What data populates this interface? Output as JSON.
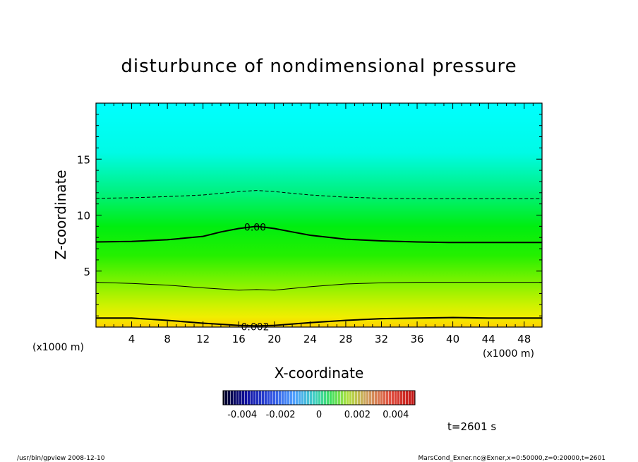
{
  "chart_data": {
    "type": "heatmap",
    "title": "disturbunce of nondimensional pressure",
    "xlabel": "X-coordinate",
    "ylabel": "Z-coordinate",
    "x_unit": "(x1000 m)",
    "y_unit": "(x1000 m)",
    "xlim": [
      0,
      50
    ],
    "ylim": [
      0,
      20
    ],
    "x_ticks": [
      4,
      8,
      12,
      16,
      20,
      24,
      28,
      32,
      36,
      40,
      44,
      48
    ],
    "y_ticks": [
      5,
      10,
      15
    ],
    "colorbar": {
      "ticks": [
        "-0.004",
        "-0.002",
        "0",
        "0.002",
        "0.004"
      ],
      "values": [
        -0.004,
        -0.002,
        0,
        0.002,
        0.004
      ],
      "range": [
        -0.005,
        0.005
      ]
    },
    "field_description_values": {
      "value_at_bottom": 0.0025,
      "value_at_top": -0.0018
    },
    "contours": [
      {
        "level": 0.002,
        "label": "0.002",
        "style": "solid-thick",
        "x": [
          0,
          4,
          8,
          12,
          16,
          18,
          20,
          24,
          28,
          32,
          36,
          40,
          44,
          48,
          50
        ],
        "z": [
          0.8,
          0.8,
          0.6,
          0.35,
          0.15,
          0.1,
          0.15,
          0.4,
          0.6,
          0.75,
          0.8,
          0.85,
          0.8,
          0.8,
          0.8
        ]
      },
      {
        "level": 0.001,
        "style": "solid-thin",
        "x": [
          0,
          4,
          8,
          12,
          14,
          16,
          18,
          20,
          24,
          28,
          32,
          36,
          40,
          44,
          48,
          50
        ],
        "z": [
          4.0,
          3.9,
          3.75,
          3.5,
          3.4,
          3.3,
          3.35,
          3.3,
          3.6,
          3.85,
          3.95,
          4.0,
          4.0,
          4.0,
          4.0,
          4.0
        ]
      },
      {
        "level": 0.0,
        "label": "0.00",
        "style": "solid-thick",
        "x": [
          0,
          4,
          8,
          12,
          14,
          16,
          18,
          20,
          22,
          24,
          28,
          32,
          36,
          40,
          44,
          48,
          50
        ],
        "z": [
          7.6,
          7.65,
          7.8,
          8.1,
          8.5,
          8.8,
          9.0,
          8.8,
          8.5,
          8.2,
          7.85,
          7.7,
          7.6,
          7.55,
          7.55,
          7.55,
          7.55
        ]
      },
      {
        "level": -0.001,
        "style": "dashed",
        "x": [
          0,
          4,
          8,
          12,
          14,
          16,
          18,
          20,
          22,
          24,
          28,
          32,
          36,
          40,
          44,
          48,
          50
        ],
        "z": [
          11.5,
          11.55,
          11.65,
          11.8,
          11.95,
          12.1,
          12.2,
          12.1,
          11.95,
          11.8,
          11.6,
          11.5,
          11.45,
          11.45,
          11.45,
          11.45,
          11.45
        ]
      }
    ],
    "time_label": "t=2601 s"
  },
  "footer": {
    "left": "/usr/bin/gpview   2008-12-10",
    "right": "MarsCond_Exner.nc@Exner,x=0:50000,z=0:20000,t=2601"
  }
}
